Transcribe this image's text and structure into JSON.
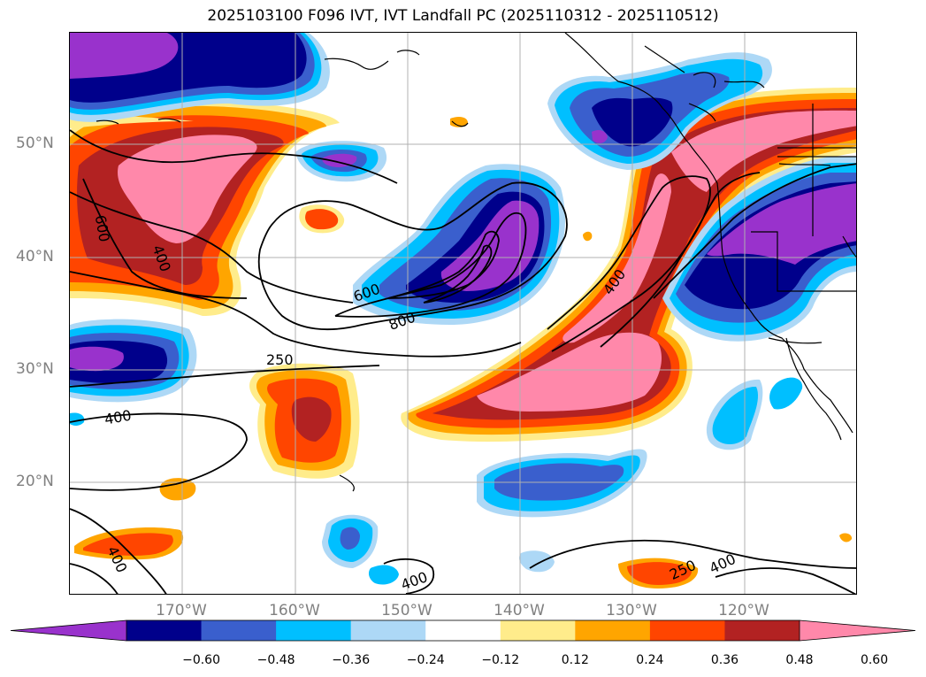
{
  "title": "2025103100 F096 IVT, IVT Landfall PC (2025110312 - 2025110512)",
  "lat_labels": [
    "50°N",
    "40°N",
    "30°N",
    "20°N"
  ],
  "lon_labels": [
    "170°W",
    "160°W",
    "150°W",
    "140°W",
    "130°W",
    "120°W"
  ],
  "contour_labels": {
    "c600_left": "600",
    "c400_left": "400",
    "c600_mid": "600",
    "c800_mid": "800",
    "c250_mid": "250",
    "c400_west": "400",
    "c400_sw": "400",
    "c400_ar": "400",
    "c400_south": "400",
    "c250_se": "250",
    "c400_se": "400"
  },
  "colorbar": {
    "ticks": [
      "−0.60",
      "−0.48",
      "−0.36",
      "−0.24",
      "−0.12",
      "0.12",
      "0.24",
      "0.36",
      "0.48",
      "0.60"
    ],
    "colors": [
      "#9932cc",
      "#00008b",
      "#3a5fcd",
      "#00bfff",
      "#add8f6",
      "#ffffff",
      "#ffec8b",
      "#ffa500",
      "#ff4500",
      "#b22222",
      "#ff88aa"
    ]
  },
  "palette": {
    "c_neg_060": "#9932cc",
    "c_neg_048": "#00008b",
    "c_neg_036": "#3a5fcd",
    "c_neg_024": "#00bfff",
    "c_neg_012": "#add8f6",
    "c_pos_012": "#ffec8b",
    "c_pos_024": "#ffa500",
    "c_pos_036": "#ff4500",
    "c_pos_048": "#b22222",
    "c_pos_060": "#ff88aa"
  }
}
